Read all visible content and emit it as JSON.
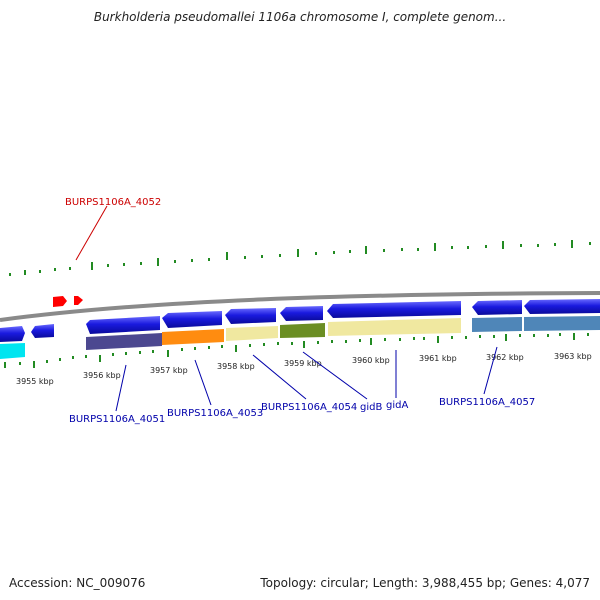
{
  "title": "Burkholderia pseudomallei 1106a chromosome I, complete genom...",
  "footer": {
    "accession": "Accession: NC_009076",
    "summary": "Topology: circular; Length: 3,988,455 bp; Genes: 4,077"
  },
  "ruler": {
    "unit": "kbp",
    "labels": [
      "3955 kbp",
      "3956 kbp",
      "3957 kbp",
      "3958 kbp",
      "3959 kbp",
      "3960 kbp",
      "3961 kbp",
      "3962 kbp",
      "3963 kbp"
    ]
  },
  "gene_labels": [
    {
      "text": "BURPS1106A_4052",
      "color": "#cc0000"
    },
    {
      "text": "BURPS1106A_4051",
      "color": "#0000aa"
    },
    {
      "text": "BURPS1106A_4053",
      "color": "#0000aa"
    },
    {
      "text": "BURPS1106A_4054",
      "color": "#0000aa"
    },
    {
      "text": "gidB",
      "color": "#0000aa"
    },
    {
      "text": "gidA",
      "color": "#0000aa"
    },
    {
      "text": "BURPS1106A_4057",
      "color": "#0000aa"
    }
  ],
  "colors": {
    "gene_forward": "#1a1adf",
    "rna": "#ff0000",
    "backbone": "#8a8a8a",
    "ticks": "#228b22",
    "cog_cyan": "#00e5f0",
    "cog_purple": "#4c4890",
    "cog_orange": "#ff8c10",
    "cog_khaki": "#f0e8a0",
    "cog_olive": "#6b8e23",
    "cog_steelblue": "#4f86b8"
  }
}
